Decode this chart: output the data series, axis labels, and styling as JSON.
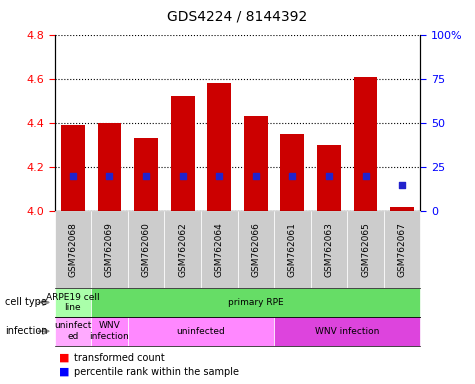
{
  "title": "GDS4224 / 8144392",
  "samples": [
    "GSM762068",
    "GSM762069",
    "GSM762060",
    "GSM762062",
    "GSM762064",
    "GSM762066",
    "GSM762061",
    "GSM762063",
    "GSM762065",
    "GSM762067"
  ],
  "transformed_counts": [
    4.39,
    4.4,
    4.33,
    4.52,
    4.58,
    4.43,
    4.35,
    4.3,
    4.61,
    4.02
  ],
  "percentile_ranks": [
    20,
    20,
    20,
    20,
    20,
    20,
    20,
    20,
    20,
    15
  ],
  "ylim_left": [
    4.0,
    4.8
  ],
  "ylim_right": [
    0,
    100
  ],
  "yticks_left": [
    4.0,
    4.2,
    4.4,
    4.6,
    4.8
  ],
  "yticks_right": [
    0,
    25,
    50,
    75,
    100
  ],
  "ytick_labels_right": [
    "0",
    "25",
    "50",
    "75",
    "100%"
  ],
  "bar_color": "#cc0000",
  "bar_bottom": 4.0,
  "percentile_color": "#2222cc",
  "cell_type_groups": [
    {
      "label": "ARPE19 cell\nline",
      "start": 0,
      "end": 0,
      "color": "#aaffaa"
    },
    {
      "label": "primary RPE",
      "start": 1,
      "end": 9,
      "color": "#66dd66"
    }
  ],
  "infection_groups": [
    {
      "label": "uninfect\ned",
      "start": 0,
      "end": 0,
      "color": "#ffaaff"
    },
    {
      "label": "WNV\ninfection",
      "start": 1,
      "end": 1,
      "color": "#ff88ff"
    },
    {
      "label": "uninfected",
      "start": 2,
      "end": 5,
      "color": "#ff88ff"
    },
    {
      "label": "WNV infection",
      "start": 6,
      "end": 9,
      "color": "#dd44dd"
    }
  ],
  "bar_width": 0.65,
  "tick_label_fontsize": 6.5,
  "title_fontsize": 10,
  "sample_label_bg": "#cccccc"
}
